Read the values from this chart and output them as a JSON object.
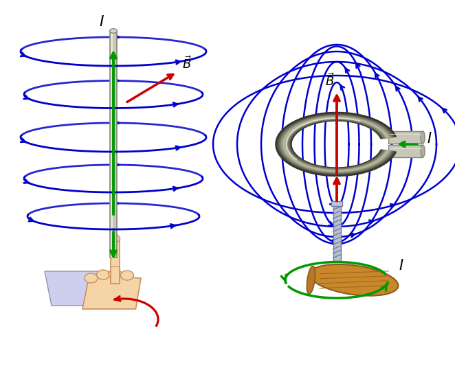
{
  "background_color": "#ffffff",
  "fig_width": 6.62,
  "fig_height": 5.65,
  "dpi": 100,
  "colors": {
    "blue": "#0000cc",
    "green": "#009900",
    "red": "#cc0000",
    "wire_fill": "#c8c8b8",
    "wire_edge": "#888877",
    "ring_dark": "#3a3a3a",
    "ring_mid": "#888880",
    "ring_light": "#c8c8b8",
    "hand_skin": "#f5d5a8",
    "hand_edge": "#c8905a",
    "sleeve": "#ccd0ee",
    "wood_fill": "#c8882a",
    "wood_edge": "#8b5a1a"
  }
}
